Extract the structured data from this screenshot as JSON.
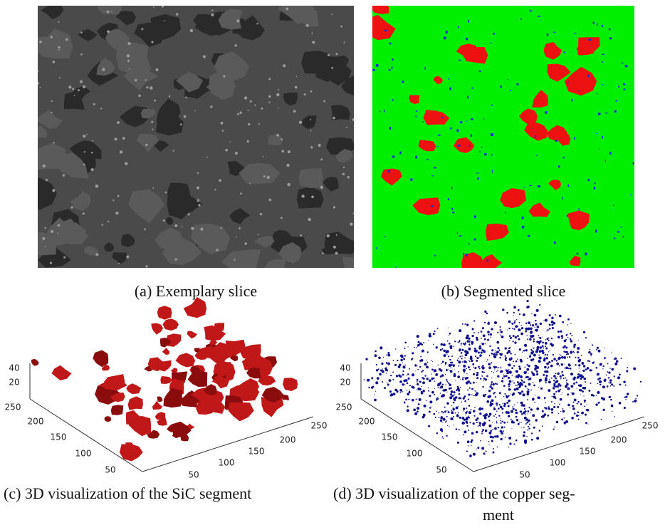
{
  "panels": [
    {
      "caption": "(a) Exemplary slice"
    },
    {
      "caption": "(b) Segmented slice"
    },
    {
      "caption": "(c) 3D visualization of the SiC segment",
      "z_ticks": [
        "40",
        "20"
      ],
      "y_ticks": [
        "250",
        "200",
        "150",
        "100",
        "50"
      ],
      "x_ticks": [
        "50",
        "100",
        "150",
        "200",
        "250"
      ]
    },
    {
      "caption_lines": [
        "(d) 3D visualization of the copper seg-",
        "ment"
      ],
      "z_ticks": [
        "40",
        "20"
      ],
      "y_ticks": [
        "250",
        "200",
        "150",
        "100",
        "50"
      ],
      "x_ticks": [
        "50",
        "100",
        "150",
        "200",
        "250"
      ]
    }
  ]
}
